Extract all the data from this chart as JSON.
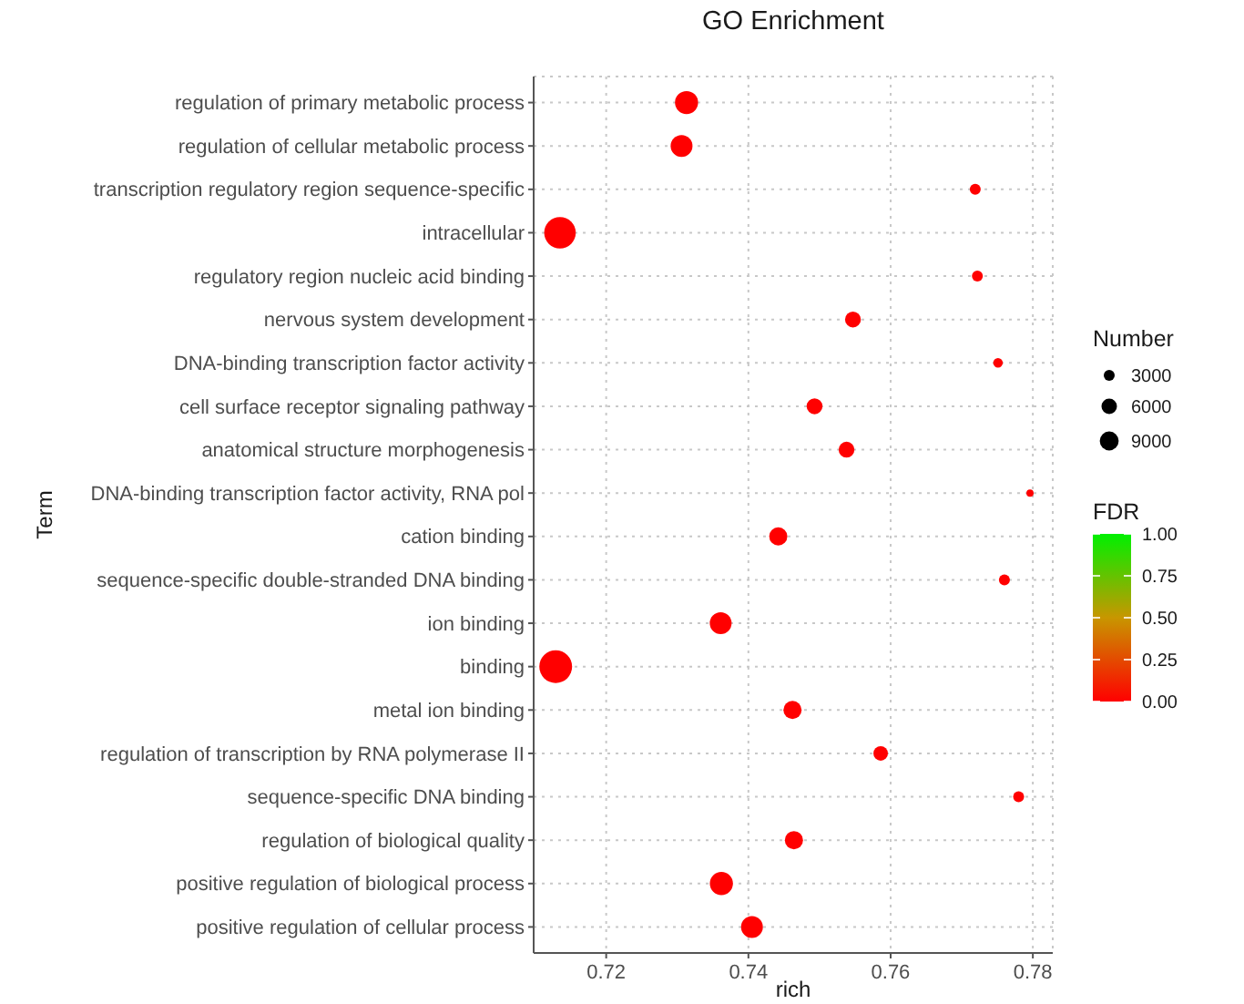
{
  "chart_data": {
    "type": "bubble",
    "title": "GO Enrichment",
    "xlabel": "rich",
    "ylabel": "Term",
    "legend_title": "Number",
    "clabel": "FDR",
    "orientation": "horizontal",
    "categories": [
      "regulation of primary metabolic process",
      "regulation of cellular metabolic process",
      "transcription regulatory region sequence-specific",
      "intracellular",
      "regulatory region nucleic acid binding",
      "nervous system development",
      "DNA-binding transcription factor activity",
      "cell surface receptor signaling pathway",
      "anatomical structure morphogenesis",
      "DNA-binding transcription factor activity, RNA pol",
      "cation binding",
      "sequence-specific double-stranded DNA binding",
      "ion binding",
      "binding",
      "metal ion binding",
      "regulation of transcription by RNA polymerase II",
      "sequence-specific DNA binding",
      "regulation of biological quality",
      "positive regulation of biological process",
      "positive regulation of cellular process"
    ],
    "values": [
      0.7313,
      0.7306,
      0.7719,
      0.7135,
      0.7722,
      0.7547,
      0.7751,
      0.7493,
      0.7538,
      0.7796,
      0.7442,
      0.776,
      0.7361,
      0.7129,
      0.7462,
      0.7586,
      0.778,
      0.7464,
      0.7362,
      0.7405
    ],
    "sizes": [
      13400,
      12000,
      3000,
      25000,
      3000,
      6300,
      2300,
      6300,
      6300,
      1300,
      8300,
      3000,
      12000,
      27000,
      8300,
      5300,
      3000,
      8300,
      13400,
      12000
    ],
    "size_legend": [
      3000,
      6000,
      9000
    ],
    "cvalues": [
      0,
      0,
      0,
      0,
      0,
      0,
      0,
      0,
      0,
      0,
      0,
      0,
      0,
      0,
      0,
      0,
      0,
      0,
      0,
      0
    ],
    "clim": [
      0,
      1
    ],
    "cticks": [
      {
        "value": 1,
        "label": "1.00"
      },
      0.75,
      {
        "value": 0.5,
        "label": "0.50"
      },
      0.25,
      {
        "value": 0,
        "label": "0.00"
      }
    ],
    "xlim": [
      0.7098,
      0.7828
    ],
    "xticks": [
      0.72,
      0.74,
      0.76,
      0.78
    ],
    "grid": true
  }
}
